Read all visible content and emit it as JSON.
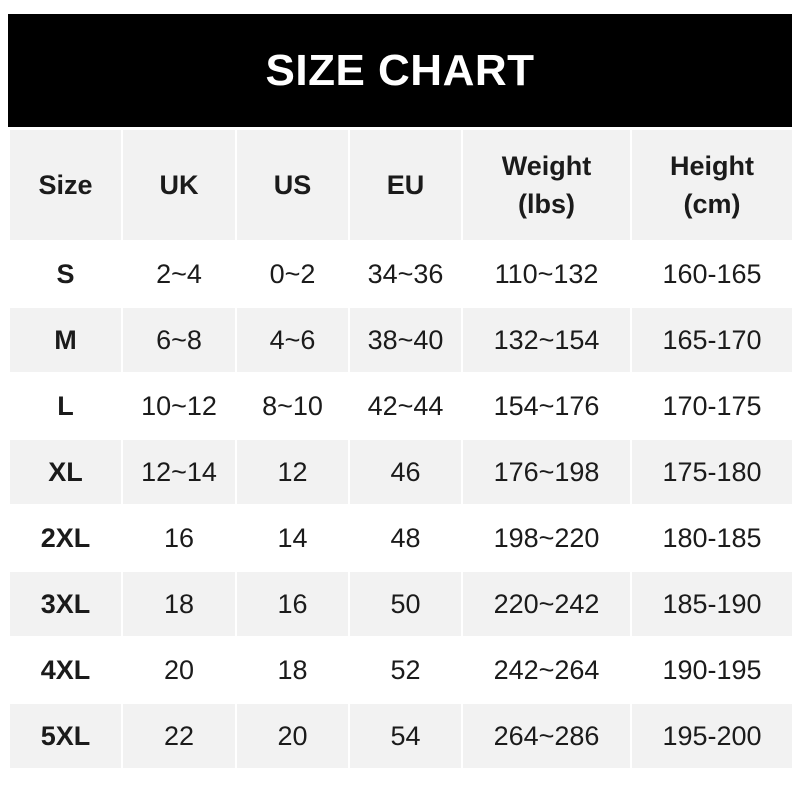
{
  "title": "SIZE CHART",
  "colors": {
    "title_bg": "#000000",
    "header_bg": "#f2f2f2",
    "alt_row_bg": "#f2f2f2",
    "row_bg": "#ffffff"
  },
  "headers": [
    {
      "line1": "Size",
      "line2": ""
    },
    {
      "line1": "UK",
      "line2": ""
    },
    {
      "line1": "US",
      "line2": ""
    },
    {
      "line1": "EU",
      "line2": ""
    },
    {
      "line1": "Weight",
      "line2": "(lbs)"
    },
    {
      "line1": "Height",
      "line2": "(cm)"
    }
  ],
  "rows": [
    [
      "S",
      "2~4",
      "0~2",
      "34~36",
      "110~132",
      "160-165"
    ],
    [
      "M",
      "6~8",
      "4~6",
      "38~40",
      "132~154",
      "165-170"
    ],
    [
      "L",
      "10~12",
      "8~10",
      "42~44",
      "154~176",
      "170-175"
    ],
    [
      "XL",
      "12~14",
      "12",
      "46",
      "176~198",
      "175-180"
    ],
    [
      "2XL",
      "16",
      "14",
      "48",
      "198~220",
      "180-185"
    ],
    [
      "3XL",
      "18",
      "16",
      "50",
      "220~242",
      "185-190"
    ],
    [
      "4XL",
      "20",
      "18",
      "52",
      "242~264",
      "190-195"
    ],
    [
      "5XL",
      "22",
      "20",
      "54",
      "264~286",
      "195-200"
    ]
  ]
}
